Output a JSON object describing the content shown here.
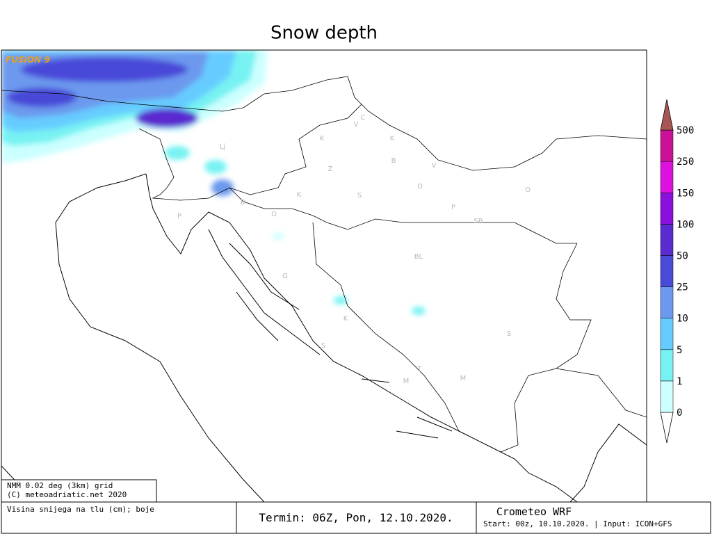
{
  "title": "Snow depth",
  "watermark": "FUSION 9",
  "place_labels": [
    "Lj",
    "V",
    "C",
    "K",
    "K",
    "B",
    "V",
    "Z",
    "D",
    "K",
    "S",
    "D",
    "P",
    "O",
    "P",
    "O",
    "SB",
    "BL",
    "G",
    "K",
    "S",
    "S",
    "M",
    "M",
    "T"
  ],
  "legend": {
    "levels": [
      0,
      1,
      5,
      10,
      25,
      50,
      100,
      150,
      250,
      500
    ],
    "colors": [
      "#ccffff",
      "#77f2f2",
      "#66ccff",
      "#6c99ee",
      "#4a4ad8",
      "#5a2bd0",
      "#8a10dc",
      "#dd11dd",
      "#cc1199",
      "#aa5555"
    ]
  },
  "footer": {
    "model_info": [
      "NMM 0.02 deg (3km) grid",
      "(C) meteoadriatic.net 2020"
    ],
    "variable": "Visina snijega na tlu (cm); boje",
    "termin": "Termin: 06Z, Pon, 12.10.2020.",
    "model": "Crometeo WRF",
    "run": "Start: 00z, 10.10.2020. | Input: ICON+GFS"
  }
}
